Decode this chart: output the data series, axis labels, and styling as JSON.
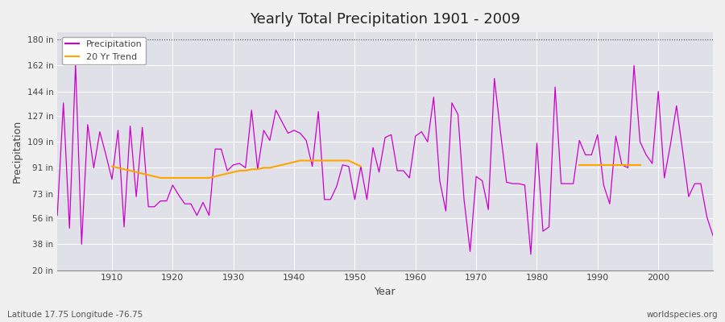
{
  "title": "Yearly Total Precipitation 1901 - 2009",
  "xlabel": "Year",
  "ylabel": "Precipitation",
  "lat_lon_label": "Latitude 17.75 Longitude -76.75",
  "watermark": "worldspecies.org",
  "ylim": [
    20,
    185
  ],
  "yticks": [
    20,
    38,
    56,
    73,
    91,
    109,
    127,
    144,
    162,
    180
  ],
  "ytick_labels": [
    "20 in",
    "38 in",
    "56 in",
    "73 in",
    "91 in",
    "109 in",
    "127 in",
    "144 in",
    "162 in",
    "180 in"
  ],
  "precip_color": "#CC00CC",
  "trend_color": "#FFA500",
  "fig_bg": "#F0F0F0",
  "plot_bg": "#E0E0E8",
  "years": [
    1901,
    1902,
    1903,
    1904,
    1905,
    1906,
    1907,
    1908,
    1909,
    1910,
    1911,
    1912,
    1913,
    1914,
    1915,
    1916,
    1917,
    1918,
    1919,
    1920,
    1921,
    1922,
    1923,
    1924,
    1925,
    1926,
    1927,
    1928,
    1929,
    1930,
    1931,
    1932,
    1933,
    1934,
    1935,
    1936,
    1937,
    1938,
    1939,
    1940,
    1941,
    1942,
    1943,
    1944,
    1945,
    1946,
    1947,
    1948,
    1949,
    1950,
    1951,
    1952,
    1953,
    1954,
    1955,
    1956,
    1957,
    1958,
    1959,
    1960,
    1961,
    1962,
    1963,
    1964,
    1965,
    1966,
    1967,
    1968,
    1969,
    1970,
    1971,
    1972,
    1973,
    1974,
    1975,
    1976,
    1977,
    1978,
    1979,
    1980,
    1981,
    1982,
    1983,
    1984,
    1985,
    1986,
    1987,
    1988,
    1989,
    1990,
    1991,
    1992,
    1993,
    1994,
    1995,
    1996,
    1997,
    1998,
    1999,
    2000,
    2001,
    2002,
    2003,
    2004,
    2005,
    2006,
    2007,
    2008,
    2009
  ],
  "precip": [
    58,
    136,
    49,
    163,
    38,
    121,
    91,
    116,
    100,
    83,
    117,
    50,
    120,
    71,
    119,
    64,
    64,
    68,
    68,
    79,
    72,
    66,
    66,
    58,
    67,
    58,
    104,
    104,
    89,
    93,
    94,
    91,
    131,
    90,
    117,
    110,
    131,
    123,
    115,
    117,
    115,
    110,
    92,
    130,
    69,
    69,
    78,
    93,
    92,
    69,
    92,
    69,
    105,
    88,
    112,
    114,
    89,
    89,
    84,
    113,
    116,
    109,
    140,
    82,
    61,
    136,
    128,
    69,
    33,
    85,
    82,
    62,
    153,
    116,
    81,
    80,
    80,
    79,
    31,
    108,
    47,
    50,
    147,
    80,
    80,
    80,
    110,
    100,
    100,
    114,
    79,
    66,
    113,
    93,
    91,
    162,
    109,
    100,
    94,
    144,
    84,
    107,
    134,
    103,
    71,
    80,
    80,
    57,
    44
  ],
  "trend_seg1_years": [
    1910,
    1911,
    1912,
    1913,
    1914,
    1915,
    1916,
    1917,
    1918,
    1919,
    1920,
    1921,
    1922,
    1923,
    1924,
    1925,
    1926,
    1927,
    1928,
    1929,
    1930,
    1931,
    1932,
    1933,
    1934,
    1935,
    1936,
    1937,
    1938,
    1939,
    1940,
    1941,
    1942,
    1943,
    1944,
    1945,
    1946,
    1947,
    1948,
    1949,
    1950,
    1951
  ],
  "trend_seg1_vals": [
    92,
    91,
    90,
    89,
    88,
    87,
    86,
    85,
    84,
    84,
    84,
    84,
    84,
    84,
    84,
    84,
    84,
    85,
    86,
    87,
    88,
    89,
    89,
    90,
    90,
    91,
    91,
    92,
    93,
    94,
    95,
    96,
    96,
    96,
    96,
    96,
    96,
    96,
    96,
    96,
    94,
    92
  ],
  "trend_seg2_years": [
    1987,
    1988,
    1989,
    1990,
    1991,
    1992,
    1993,
    1994,
    1995,
    1996,
    1997
  ],
  "trend_seg2_vals": [
    93,
    93,
    93,
    93,
    93,
    93,
    93,
    93,
    93,
    93,
    93
  ]
}
